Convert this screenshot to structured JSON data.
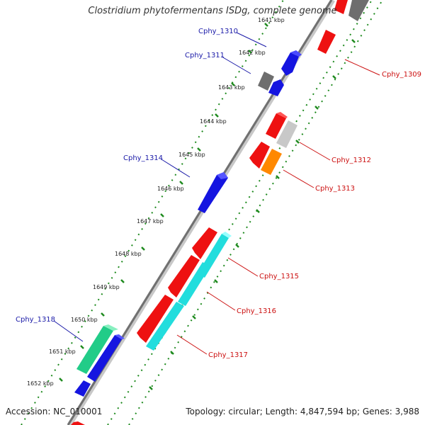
{
  "title": "Clostridium phytofermentans ISDg, complete genome",
  "accession": "Accession: NC_010001",
  "summary": "Topology: circular; Length: 4,847,594 bp; Genes: 3,988",
  "colors": {
    "backbone": "#8a8a8a",
    "tick_dots": "#1e8a1e",
    "label_left": "#1a1aa8",
    "label_right": "#cc1111"
  },
  "ticks": [
    {
      "label": "1641 kbp"
    },
    {
      "label": "1642 kbp"
    },
    {
      "label": "1643 kbp"
    },
    {
      "label": "1644 kbp"
    },
    {
      "label": "1645 kbp"
    },
    {
      "label": "1646 kbp"
    },
    {
      "label": "1647 kbp"
    },
    {
      "label": "1648 kbp"
    },
    {
      "label": "1649 kbp"
    },
    {
      "label": "1650 kbp"
    },
    {
      "label": "1651 kbp"
    },
    {
      "label": "1652 kbp"
    }
  ],
  "gene_labels_left": [
    {
      "name": "Cphy_1310"
    },
    {
      "name": "Cphy_1311"
    },
    {
      "name": "Cphy_1314"
    },
    {
      "name": "Cphy_1318"
    }
  ],
  "gene_labels_right": [
    {
      "name": "Cphy_1309"
    },
    {
      "name": "Cphy_1312"
    },
    {
      "name": "Cphy_1313"
    },
    {
      "name": "Cphy_1315"
    },
    {
      "name": "Cphy_1316"
    },
    {
      "name": "Cphy_1317"
    }
  ]
}
